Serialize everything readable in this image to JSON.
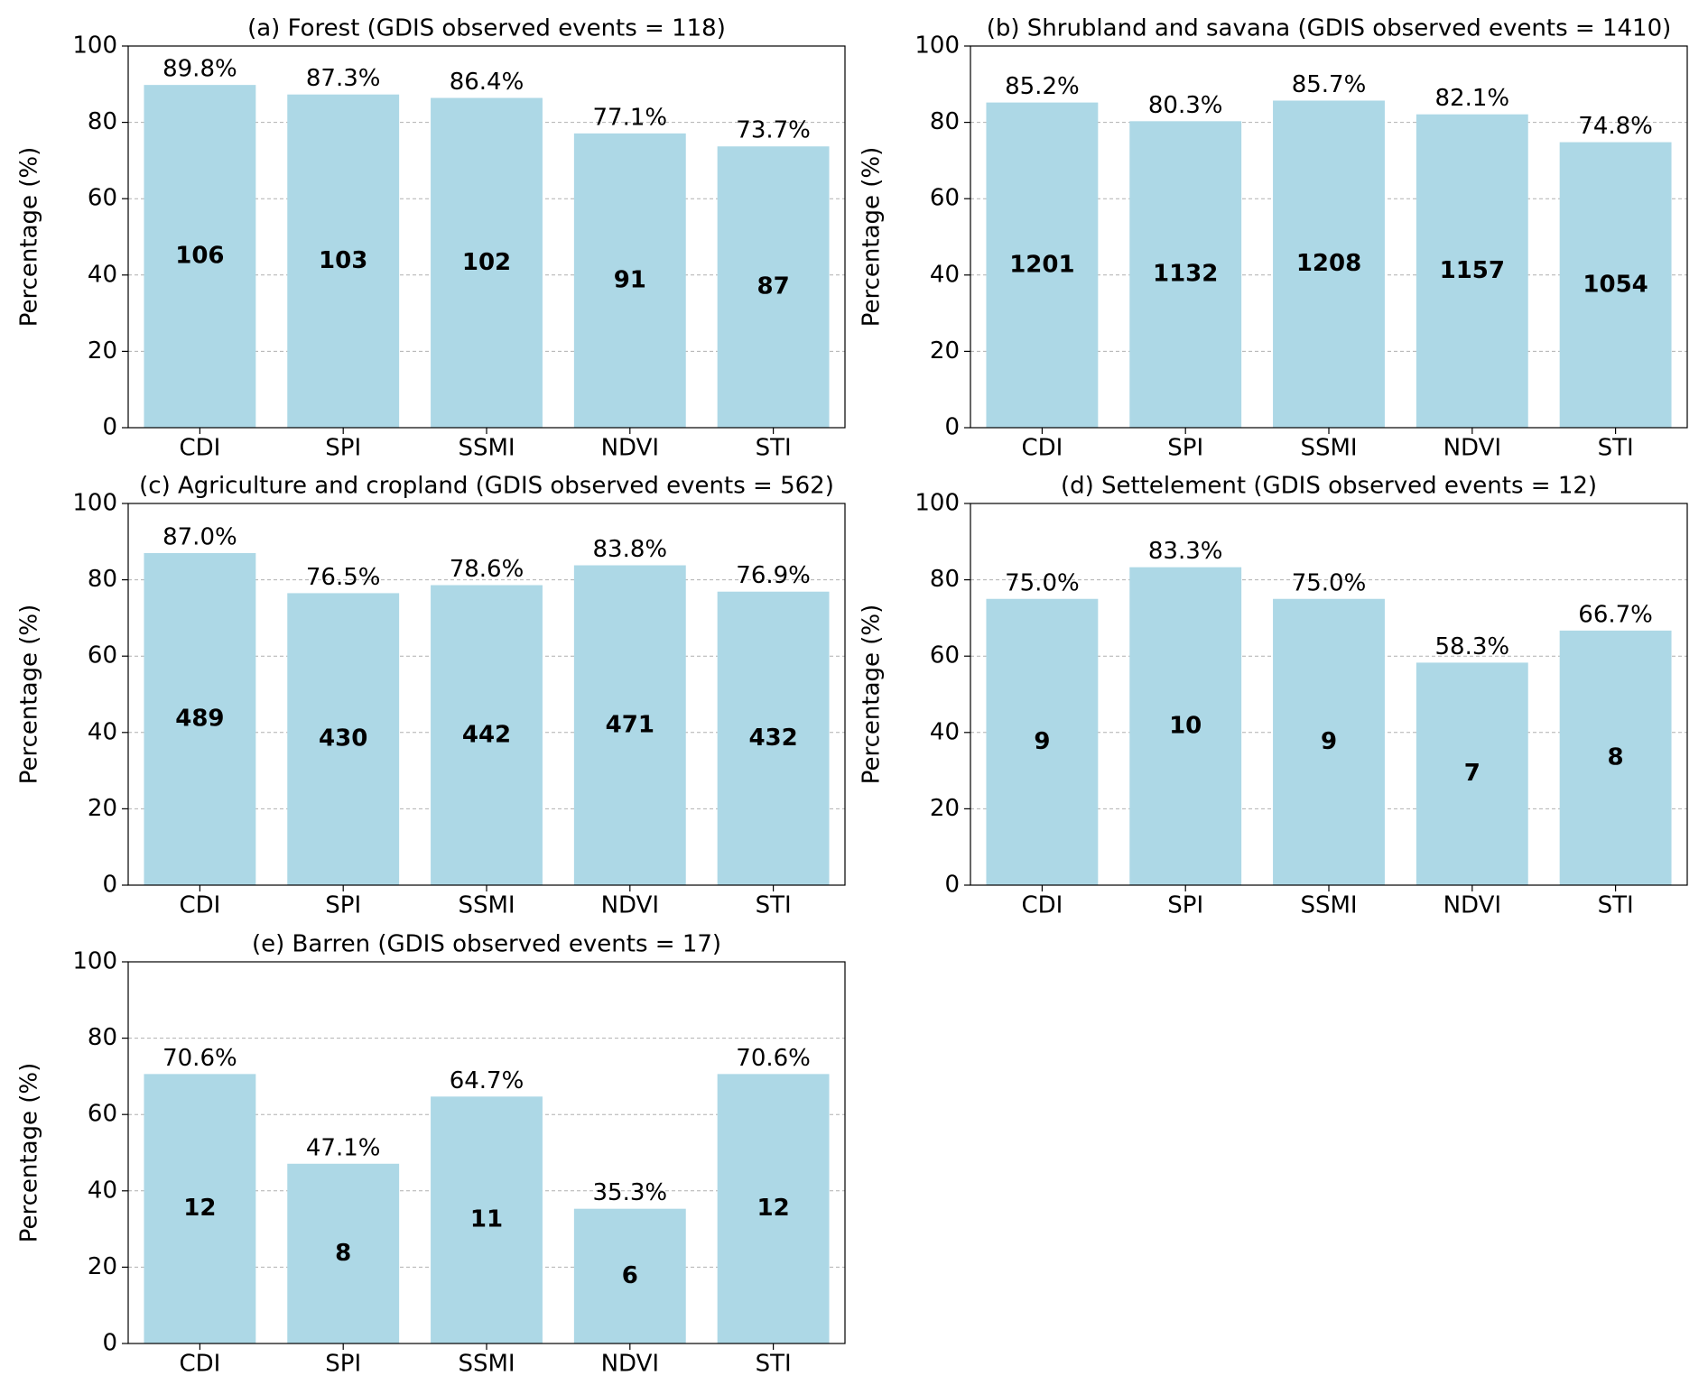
{
  "chart_data": [
    {
      "type": "bar",
      "title": "(a) Forest (GDIS observed events = 118)",
      "ylabel": "Percentage (%)",
      "categories": [
        "CDI",
        "SPI",
        "SSMI",
        "NDVI",
        "STI"
      ],
      "values": [
        89.8,
        87.3,
        86.4,
        77.1,
        73.7
      ],
      "value_labels": [
        "89.8%",
        "87.3%",
        "86.4%",
        "77.1%",
        "73.7%"
      ],
      "counts": [
        106,
        103,
        102,
        91,
        87
      ],
      "color": "#add8e6",
      "ylim": [
        0,
        100
      ],
      "yticks": [
        0,
        20,
        40,
        60,
        80,
        100
      ],
      "grid": true
    },
    {
      "type": "bar",
      "title": "(b) Shrubland and savana (GDIS observed events = 1410)",
      "ylabel": "Percentage (%)",
      "categories": [
        "CDI",
        "SPI",
        "SSMI",
        "NDVI",
        "STI"
      ],
      "values": [
        85.2,
        80.3,
        85.7,
        82.1,
        74.8
      ],
      "value_labels": [
        "85.2%",
        "80.3%",
        "85.7%",
        "82.1%",
        "74.8%"
      ],
      "counts": [
        1201,
        1132,
        1208,
        1157,
        1054
      ],
      "color": "#add8e6",
      "ylim": [
        0,
        100
      ],
      "yticks": [
        0,
        20,
        40,
        60,
        80,
        100
      ],
      "grid": true
    },
    {
      "type": "bar",
      "title": "(c) Agriculture and cropland (GDIS observed events = 562)",
      "ylabel": "Percentage (%)",
      "categories": [
        "CDI",
        "SPI",
        "SSMI",
        "NDVI",
        "STI"
      ],
      "values": [
        87.0,
        76.5,
        78.6,
        83.8,
        76.9
      ],
      "value_labels": [
        "87.0%",
        "76.5%",
        "78.6%",
        "83.8%",
        "76.9%"
      ],
      "counts": [
        489,
        430,
        442,
        471,
        432
      ],
      "color": "#add8e6",
      "ylim": [
        0,
        100
      ],
      "yticks": [
        0,
        20,
        40,
        60,
        80,
        100
      ],
      "grid": true
    },
    {
      "type": "bar",
      "title": "(d) Settelement (GDIS observed events = 12)",
      "ylabel": "Percentage (%)",
      "categories": [
        "CDI",
        "SPI",
        "SSMI",
        "NDVI",
        "STI"
      ],
      "values": [
        75.0,
        83.3,
        75.0,
        58.3,
        66.7
      ],
      "value_labels": [
        "75.0%",
        "83.3%",
        "75.0%",
        "58.3%",
        "66.7%"
      ],
      "counts": [
        9,
        10,
        9,
        7,
        8
      ],
      "color": "#add8e6",
      "ylim": [
        0,
        100
      ],
      "yticks": [
        0,
        20,
        40,
        60,
        80,
        100
      ],
      "grid": true
    },
    {
      "type": "bar",
      "title": "(e) Barren (GDIS observed events = 17)",
      "ylabel": "Percentage (%)",
      "categories": [
        "CDI",
        "SPI",
        "SSMI",
        "NDVI",
        "STI"
      ],
      "values": [
        70.6,
        47.1,
        64.7,
        35.3,
        70.6
      ],
      "value_labels": [
        "70.6%",
        "47.1%",
        "64.7%",
        "35.3%",
        "70.6%"
      ],
      "counts": [
        12,
        8,
        11,
        6,
        12
      ],
      "color": "#add8e6",
      "ylim": [
        0,
        100
      ],
      "yticks": [
        0,
        20,
        40,
        60,
        80,
        100
      ],
      "grid": true
    }
  ]
}
